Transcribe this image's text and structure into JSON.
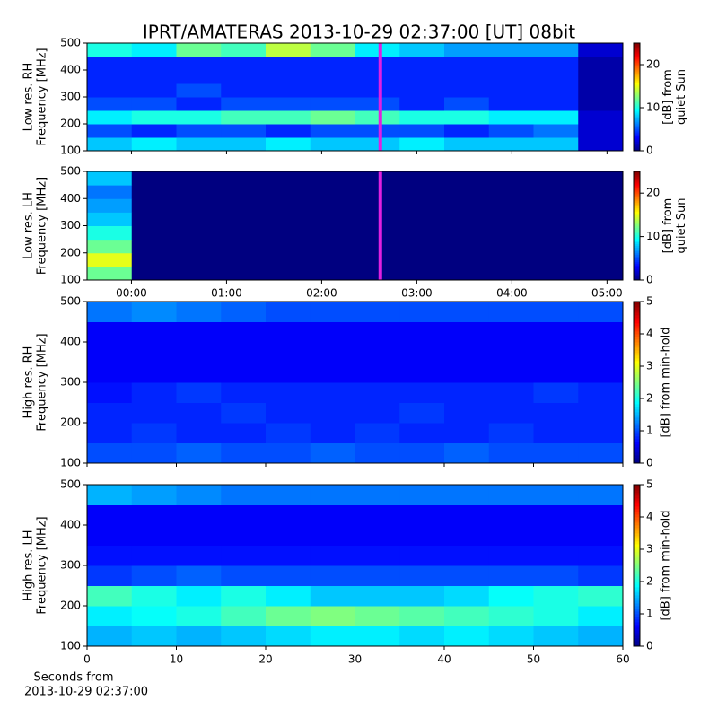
{
  "chart_data": [
    {
      "type": "heatmap",
      "title": "IPRT/AMATERAS 2013-10-29 02:37:00 [UT]   08bit",
      "ylabel": [
        "Low res. RH",
        "Frequency [MHz]"
      ],
      "colorbar_label": [
        "[dB] from",
        "quiet Sun"
      ],
      "colormap": "jet",
      "zlim": [
        0,
        25
      ],
      "zticks": [
        0,
        10,
        20
      ],
      "xlim": [
        -28,
        310
      ],
      "ylim": [
        100,
        500
      ],
      "yticks": [
        100,
        200,
        300,
        400,
        500
      ],
      "sharex": 1,
      "marker": {
        "x": 157,
        "color": "#e020e0"
      },
      "z": [
        [
          8,
          9,
          8,
          8,
          9,
          8,
          8,
          9,
          8,
          8,
          8,
          2
        ],
        [
          5,
          4,
          5,
          5,
          4,
          5,
          5,
          5,
          4,
          5,
          6,
          2
        ],
        [
          9,
          10,
          10,
          11,
          11,
          12,
          11,
          10,
          10,
          9,
          9,
          2
        ],
        [
          5,
          5,
          4,
          5,
          5,
          5,
          5,
          4,
          5,
          4,
          4,
          1
        ],
        [
          4,
          4,
          5,
          4,
          4,
          4,
          4,
          4,
          4,
          4,
          4,
          1
        ],
        [
          4,
          4,
          4,
          4,
          4,
          4,
          4,
          4,
          4,
          4,
          4,
          1
        ],
        [
          4,
          4,
          4,
          4,
          4,
          4,
          4,
          4,
          4,
          4,
          4,
          1
        ],
        [
          10,
          9,
          12,
          11,
          14,
          12,
          9,
          8,
          7,
          7,
          7,
          2
        ]
      ]
    },
    {
      "type": "heatmap",
      "ylabel": [
        "Low res. LH",
        "Frequency [MHz]"
      ],
      "colorbar_label": [
        "[dB] from",
        "quiet Sun"
      ],
      "colormap": "jet",
      "zlim": [
        0,
        25
      ],
      "zticks": [
        0,
        10,
        20
      ],
      "xlim": [
        -28,
        310
      ],
      "ylim": [
        100,
        500
      ],
      "yticks": [
        100,
        200,
        300,
        400,
        500
      ],
      "xticks": [
        {
          "value": 0,
          "label": "00:00"
        },
        {
          "value": 60,
          "label": "01:00"
        },
        {
          "value": 120,
          "label": "02:00"
        },
        {
          "value": 180,
          "label": "03:00"
        },
        {
          "value": 240,
          "label": "04:00"
        },
        {
          "value": 300,
          "label": "05:00"
        }
      ],
      "marker": {
        "x": 157,
        "color": "#e020e0"
      },
      "z": [
        [
          12,
          0,
          0,
          0,
          0,
          0,
          0,
          0,
          0,
          0,
          0,
          0
        ],
        [
          15,
          0,
          0,
          0,
          0,
          0,
          0,
          0,
          0,
          0,
          0,
          0
        ],
        [
          12,
          0,
          0,
          0,
          0,
          0,
          0,
          0,
          0,
          0,
          0,
          0
        ],
        [
          10,
          0,
          0,
          0,
          0,
          0,
          0,
          0,
          0,
          0,
          0,
          0
        ],
        [
          8,
          0,
          0,
          0,
          0,
          0,
          0,
          0,
          0,
          0,
          0,
          0
        ],
        [
          7,
          0,
          0,
          0,
          0,
          0,
          0,
          0,
          0,
          0,
          0,
          0
        ],
        [
          6,
          0,
          0,
          0,
          0,
          0,
          0,
          0,
          0,
          0,
          0,
          0
        ],
        [
          8,
          0,
          0,
          0,
          0,
          0,
          0,
          0,
          0,
          0,
          0,
          0
        ]
      ]
    },
    {
      "type": "heatmap",
      "ylabel": [
        "High res. RH",
        "Frequency [MHz]"
      ],
      "colorbar_label": [
        "[dB] from min-hold"
      ],
      "colormap": "jet",
      "zlim": [
        0,
        5
      ],
      "zticks": [
        0,
        1,
        2,
        3,
        4,
        5
      ],
      "xlim": [
        0,
        60
      ],
      "ylim": [
        100,
        500
      ],
      "yticks": [
        100,
        200,
        300,
        400,
        500
      ],
      "sharex": 3,
      "z": [
        [
          1.0,
          1.0,
          1.1,
          1.0,
          1.0,
          1.1,
          1.0,
          1.0,
          1.1,
          1.0,
          1.0,
          1.0
        ],
        [
          0.8,
          0.9,
          0.8,
          0.8,
          0.9,
          0.8,
          0.9,
          0.8,
          0.8,
          0.9,
          0.8,
          0.8
        ],
        [
          0.8,
          0.8,
          0.8,
          0.9,
          0.8,
          0.8,
          0.8,
          0.9,
          0.8,
          0.8,
          0.8,
          0.8
        ],
        [
          0.7,
          0.8,
          0.9,
          0.8,
          0.8,
          0.8,
          0.8,
          0.8,
          0.8,
          0.8,
          0.9,
          0.8
        ],
        [
          0.6,
          0.6,
          0.6,
          0.6,
          0.6,
          0.6,
          0.6,
          0.6,
          0.6,
          0.6,
          0.6,
          0.6
        ],
        [
          0.6,
          0.6,
          0.6,
          0.6,
          0.6,
          0.6,
          0.6,
          0.6,
          0.6,
          0.6,
          0.6,
          0.6
        ],
        [
          0.6,
          0.6,
          0.6,
          0.6,
          0.6,
          0.6,
          0.6,
          0.6,
          0.6,
          0.6,
          0.6,
          0.6
        ],
        [
          1.2,
          1.3,
          1.2,
          1.1,
          1.0,
          1.0,
          1.0,
          1.0,
          1.0,
          1.0,
          1.0,
          1.0
        ]
      ]
    },
    {
      "type": "heatmap",
      "ylabel": [
        "High res. LH",
        "Frequency [MHz]"
      ],
      "colorbar_label": [
        "[dB] from min-hold"
      ],
      "colormap": "jet",
      "zlim": [
        0,
        5
      ],
      "zticks": [
        0,
        1,
        2,
        3,
        4,
        5
      ],
      "xlim": [
        0,
        60
      ],
      "ylim": [
        100,
        500
      ],
      "yticks": [
        100,
        200,
        300,
        400,
        500
      ],
      "xticks": [
        0,
        10,
        20,
        30,
        40,
        50,
        60
      ],
      "xlabel": [
        "Seconds from",
        "2013-10-29 02:37:00"
      ],
      "z": [
        [
          1.5,
          1.6,
          1.5,
          1.6,
          1.7,
          1.8,
          1.8,
          1.7,
          1.8,
          1.7,
          1.6,
          1.5
        ],
        [
          1.8,
          1.9,
          2.0,
          2.2,
          2.4,
          2.5,
          2.4,
          2.3,
          2.2,
          2.1,
          2.0,
          1.8
        ],
        [
          2.2,
          2.0,
          1.8,
          2.0,
          1.8,
          1.6,
          1.6,
          1.6,
          1.7,
          1.9,
          2.0,
          2.1
        ],
        [
          0.9,
          1.0,
          1.1,
          1.0,
          1.0,
          1.0,
          1.0,
          1.0,
          1.0,
          1.0,
          1.0,
          0.9
        ],
        [
          0.7,
          0.7,
          0.7,
          0.7,
          0.7,
          0.7,
          0.7,
          0.7,
          0.7,
          0.7,
          0.7,
          0.7
        ],
        [
          0.6,
          0.6,
          0.6,
          0.6,
          0.6,
          0.6,
          0.6,
          0.6,
          0.6,
          0.6,
          0.6,
          0.6
        ],
        [
          0.6,
          0.6,
          0.6,
          0.6,
          0.6,
          0.6,
          0.6,
          0.6,
          0.6,
          0.6,
          0.6,
          0.6
        ],
        [
          1.5,
          1.4,
          1.3,
          1.2,
          1.2,
          1.2,
          1.2,
          1.2,
          1.2,
          1.2,
          1.2,
          1.2
        ]
      ]
    }
  ]
}
